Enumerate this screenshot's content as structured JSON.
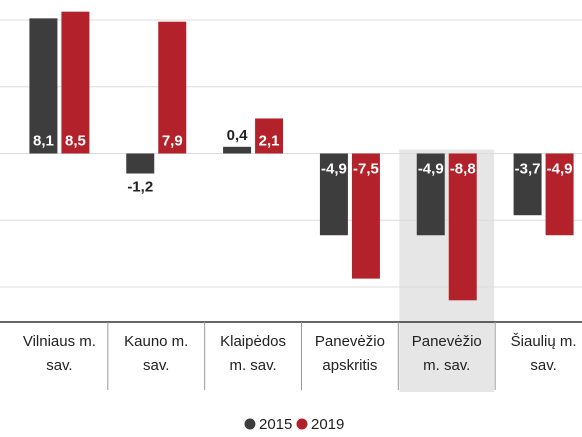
{
  "chart_data": {
    "type": "bar",
    "categories": [
      [
        "Vilniaus m.",
        "sav."
      ],
      [
        "Kauno m.",
        "sav."
      ],
      [
        "Klaipėdos",
        "m. sav."
      ],
      [
        "Panevėžio",
        "apskritis"
      ],
      [
        "Panevėžio",
        "m. sav."
      ],
      [
        "Šiaulių m.",
        "sav."
      ]
    ],
    "series": [
      {
        "name": "2015",
        "color": "#3d3d3d",
        "values": [
          8.1,
          -1.2,
          0.4,
          -4.9,
          -4.9,
          -3.7
        ],
        "value_labels": [
          "8,1",
          "-1,2",
          "0,4",
          "-4,9",
          "-4,9",
          "-3,7"
        ]
      },
      {
        "name": "2019",
        "color": "#b3222a",
        "values": [
          8.5,
          7.9,
          2.1,
          -7.5,
          -8.8,
          -4.9
        ],
        "value_labels": [
          "8,5",
          "7,9",
          "2,1",
          "-7,5",
          "-8,8",
          "-4,9"
        ]
      }
    ],
    "ylim": [
      -10.1,
      9.2
    ],
    "yticks": [
      -8,
      -4,
      0,
      4,
      8
    ],
    "grid": true,
    "highlight": 4,
    "legend": "bottom"
  }
}
